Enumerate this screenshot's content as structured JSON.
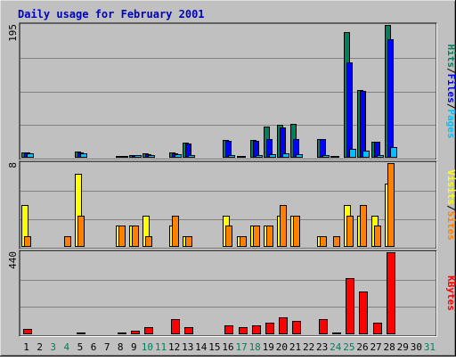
{
  "chart_data": {
    "type": "bar",
    "title": "Daily usage for February 2001",
    "colors": {
      "background": "#c0c0c0",
      "plot_background": "#c0c0c0",
      "title": "#0000c0",
      "hits": "#00805c",
      "files": "#0000ff",
      "pages": "#00c0ff",
      "visits": "#ffff00",
      "sites": "#ff8000",
      "kbytes": "#ff0000",
      "weekday_label": "#000000",
      "weekend_label": "#00805c"
    },
    "x": [
      "1",
      "2",
      "3",
      "4",
      "5",
      "6",
      "7",
      "8",
      "9",
      "10",
      "11",
      "12",
      "13",
      "14",
      "15",
      "16",
      "17",
      "18",
      "19",
      "20",
      "21",
      "22",
      "23",
      "24",
      "25",
      "26",
      "27",
      "28",
      "29",
      "30",
      "31"
    ],
    "weekend_days": [
      3,
      4,
      10,
      11,
      17,
      18,
      24,
      25,
      31
    ],
    "panels": [
      {
        "id": "hits-files-pages",
        "ymax_label": "195",
        "ylim": [
          0,
          195
        ],
        "axis_labels": [
          {
            "text": "Hits",
            "color": "#00805c"
          },
          {
            "text": "/",
            "color": "#000000"
          },
          {
            "text": "Files",
            "color": "#0000ff"
          },
          {
            "text": "/",
            "color": "#000000"
          },
          {
            "text": "Pages",
            "color": "#00c0ff"
          }
        ],
        "series": [
          {
            "name": "Hits",
            "color": "#00805c",
            "values": [
              8,
              0,
              0,
              1,
              9,
              0,
              0,
              3,
              4,
              6,
              0,
              8,
              22,
              0,
              0,
              26,
              2,
              26,
              46,
              48,
              50,
              0,
              28,
              3,
              184,
              100,
              24,
              195,
              0,
              0,
              0
            ]
          },
          {
            "name": "Files",
            "color": "#0000ff",
            "values": [
              8,
              0,
              0,
              1,
              8,
              0,
              0,
              3,
              4,
              5,
              0,
              7,
              21,
              0,
              0,
              25,
              2,
              25,
              28,
              44,
              28,
              0,
              27,
              2,
              140,
              98,
              23,
              174,
              0,
              0,
              0
            ]
          },
          {
            "name": "Pages",
            "color": "#00c0ff",
            "values": [
              7,
              0,
              0,
              0,
              6,
              0,
              0,
              2,
              4,
              4,
              0,
              5,
              4,
              0,
              0,
              4,
              1,
              4,
              5,
              6,
              5,
              0,
              4,
              1,
              13,
              11,
              4,
              16,
              0,
              0,
              0
            ]
          }
        ]
      },
      {
        "id": "visits-sites",
        "ymax_label": "8",
        "ylim": [
          0,
          8
        ],
        "axis_labels": [
          {
            "text": "Visits",
            "color": "#ffff00"
          },
          {
            "text": "/",
            "color": "#000000"
          },
          {
            "text": "Sites",
            "color": "#ff8000"
          }
        ],
        "series": [
          {
            "name": "Visits",
            "color": "#ffff00",
            "values": [
              4,
              0,
              0,
              0,
              7,
              0,
              0,
              2,
              2,
              3,
              0,
              2,
              1,
              0,
              0,
              3,
              1,
              2,
              2,
              3,
              3,
              0,
              1,
              0,
              4,
              3,
              3,
              6,
              0,
              0,
              0
            ]
          },
          {
            "name": "Sites",
            "color": "#ff8000",
            "values": [
              1,
              0,
              0,
              1,
              3,
              0,
              0,
              2,
              2,
              1,
              0,
              3,
              1,
              0,
              0,
              2,
              1,
              2,
              2,
              4,
              3,
              0,
              1,
              1,
              3,
              4,
              2,
              8,
              0,
              0,
              0
            ]
          }
        ]
      },
      {
        "id": "kbytes",
        "ymax_label": "440",
        "ylim": [
          0,
          440
        ],
        "axis_labels": [
          {
            "text": "KBytes",
            "color": "#ff0000"
          }
        ],
        "series": [
          {
            "name": "KBytes",
            "color": "#ff0000",
            "values": [
              30,
              0,
              0,
              5,
              10,
              0,
              0,
              10,
              20,
              40,
              0,
              80,
              40,
              0,
              0,
              50,
              40,
              50,
              60,
              90,
              70,
              0,
              80,
              10,
              300,
              230,
              60,
              440,
              0,
              0,
              0
            ]
          }
        ]
      }
    ]
  }
}
